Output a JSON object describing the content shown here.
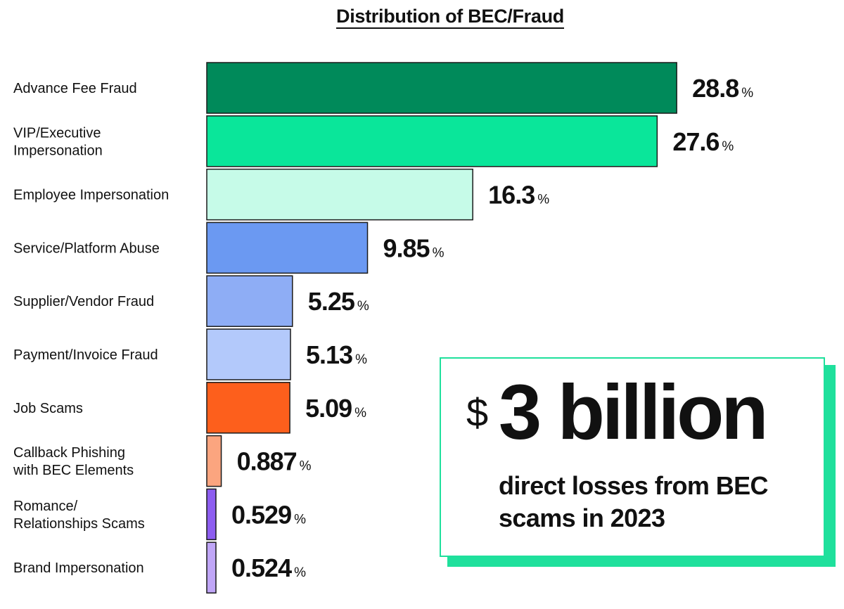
{
  "title": "Distribution of BEC/Fraud",
  "chart_data": {
    "type": "bar",
    "orientation": "horizontal",
    "title": "Distribution of BEC/Fraud",
    "unit": "%",
    "categories": [
      [
        "Advance Fee Fraud"
      ],
      [
        "VIP/Executive",
        "Impersonation"
      ],
      [
        "Employee Impersonation"
      ],
      [
        "Service/Platform Abuse"
      ],
      [
        "Supplier/Vendor Fraud"
      ],
      [
        "Payment/Invoice Fraud"
      ],
      [
        "Job Scams"
      ],
      [
        "Callback Phishing",
        "with BEC Elements"
      ],
      [
        "Romance/",
        "Relationships Scams"
      ],
      [
        "Brand Impersonation"
      ]
    ],
    "values": [
      28.8,
      27.6,
      16.3,
      9.85,
      5.25,
      5.13,
      5.09,
      0.887,
      0.529,
      0.524
    ],
    "value_labels": [
      "28.8",
      "27.6",
      "16.3",
      "9.85",
      "5.25",
      "5.13",
      "5.09",
      "0.887",
      "0.529",
      "0.524"
    ],
    "colors": [
      "#008a5a",
      "#0ae69a",
      "#c6fbe8",
      "#6b99f2",
      "#8eadf5",
      "#b3c9fb",
      "#fd5f1c",
      "#fba57f",
      "#8d5df0",
      "#c0a6f7"
    ],
    "grid": false,
    "legend": "none"
  },
  "callout": {
    "currency": "$",
    "amount": "3 billion",
    "caption": "direct losses from BEC scams in 2023",
    "accent_color": "#1fe09c"
  }
}
